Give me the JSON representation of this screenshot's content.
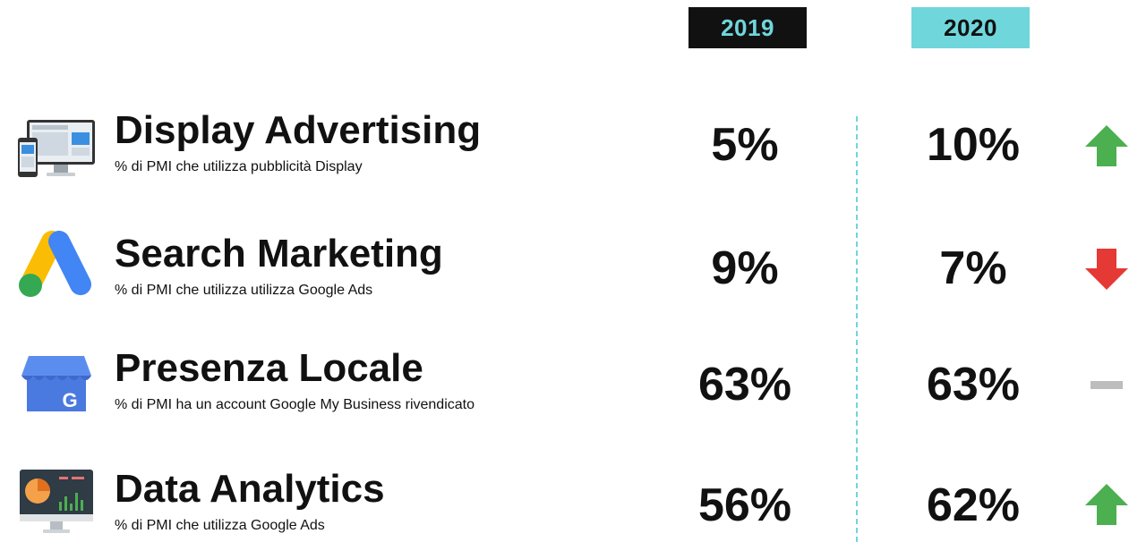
{
  "years": {
    "y2019": "2019",
    "y2020": "2020"
  },
  "colors": {
    "accent": "#6fd6dc",
    "up": "#4caf50",
    "down": "#e53935",
    "neutral": "#bdbdbd"
  },
  "rows": [
    {
      "title": "Display Advertising",
      "subtitle": "% di PMI che utilizza pubblicità Display",
      "v2019": "5%",
      "v2020": "10%",
      "trend": "up",
      "icon": "display-devices-icon"
    },
    {
      "title": "Search Marketing",
      "subtitle": "% di PMI che utilizza utilizza Google Ads",
      "v2019": "9%",
      "v2020": "7%",
      "trend": "down",
      "icon": "google-ads-icon"
    },
    {
      "title": "Presenza Locale",
      "subtitle": "% di PMI ha un account Google My Business rivendicato",
      "v2019": "63%",
      "v2020": "63%",
      "trend": "flat",
      "icon": "google-my-business-icon"
    },
    {
      "title": "Data Analytics",
      "subtitle": "% di PMI che utilizza Google Ads",
      "v2019": "56%",
      "v2020": "62%",
      "trend": "up",
      "icon": "analytics-dashboard-icon"
    }
  ]
}
